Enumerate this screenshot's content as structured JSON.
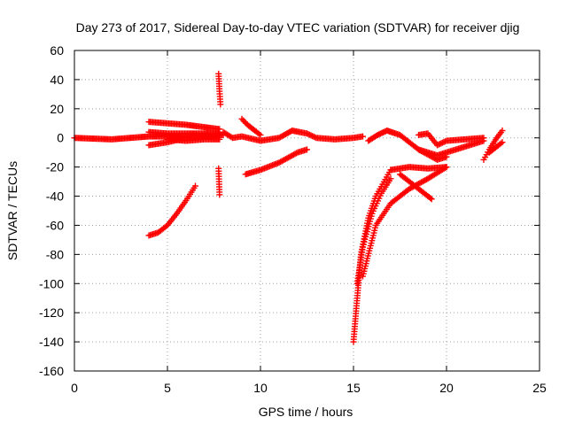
{
  "chart_data": {
    "type": "scatter",
    "title": "Day 273 of 2017, Sidereal Day-to-day VTEC variation (SDTVAR) for receiver djig",
    "xlabel": "GPS time / hours",
    "ylabel": "SDTVAR / TECUs",
    "xlim": [
      0,
      25
    ],
    "ylim": [
      -160,
      60
    ],
    "xticks": [
      0,
      5,
      10,
      15,
      20,
      25
    ],
    "yticks": [
      -160,
      -140,
      -120,
      -100,
      -80,
      -60,
      -40,
      -20,
      0,
      20,
      40,
      60
    ],
    "grid": true,
    "marker": "plus",
    "color": "#ff0000",
    "segments": [
      {
        "x": [
          0.0,
          2.0,
          4.0,
          6.0,
          8.0
        ],
        "y": [
          0,
          -1,
          1,
          1,
          2
        ]
      },
      {
        "x": [
          4.0,
          5.0,
          6.0,
          7.8
        ],
        "y": [
          11,
          10,
          9,
          6
        ]
      },
      {
        "x": [
          4.0,
          5.0,
          6.0,
          7.8
        ],
        "y": [
          4,
          3,
          3,
          3
        ]
      },
      {
        "x": [
          4.0,
          5.0,
          6.0,
          7.8
        ],
        "y": [
          -5,
          -3,
          0,
          2
        ]
      },
      {
        "x": [
          5.0,
          6.0,
          7.0,
          7.8
        ],
        "y": [
          -1,
          -2,
          -1,
          -1
        ]
      },
      {
        "x": [
          4.0,
          4.5,
          5.0,
          5.5,
          6.0,
          6.5
        ],
        "y": [
          -67,
          -65,
          -60,
          -52,
          -43,
          -33
        ]
      },
      {
        "x": [
          7.75,
          7.8,
          7.85
        ],
        "y": [
          44,
          32,
          23
        ]
      },
      {
        "x": [
          7.75,
          7.8
        ],
        "y": [
          -21,
          -39
        ]
      },
      {
        "x": [
          8.0,
          8.5,
          9.0,
          10.0,
          11.0,
          11.7,
          12.5,
          13.0,
          14.0,
          15.0,
          15.5
        ],
        "y": [
          4,
          0,
          1,
          -2,
          0,
          5,
          3,
          0,
          -1,
          0,
          1
        ]
      },
      {
        "x": [
          9.0,
          9.3,
          9.7,
          10.0
        ],
        "y": [
          13,
          9,
          5,
          2
        ]
      },
      {
        "x": [
          9.2,
          10.0,
          11.0,
          12.0,
          12.5
        ],
        "y": [
          -25,
          -22,
          -17,
          -10,
          -8
        ]
      },
      {
        "x": [
          15.0,
          15.2,
          15.4,
          15.8,
          16.2,
          17.0
        ],
        "y": [
          -140,
          -110,
          -80,
          -55,
          -40,
          -22
        ]
      },
      {
        "x": [
          15.2,
          15.5,
          16.0,
          16.5,
          17.0
        ],
        "y": [
          -100,
          -75,
          -52,
          -38,
          -28
        ]
      },
      {
        "x": [
          15.5,
          16.2,
          17.0,
          18.0,
          19.0,
          20.0
        ],
        "y": [
          -95,
          -60,
          -45,
          -35,
          -28,
          -20
        ]
      },
      {
        "x": [
          17.0,
          18.0,
          19.0,
          20.0
        ],
        "y": [
          -22,
          -20,
          -21,
          -20
        ]
      },
      {
        "x": [
          17.5,
          18.5,
          19.2
        ],
        "y": [
          -25,
          -35,
          -42
        ]
      },
      {
        "x": [
          15.8,
          16.3,
          16.8,
          17.5,
          18.0,
          18.5,
          19.0,
          19.5,
          20.0,
          21.0,
          22.0
        ],
        "y": [
          -2,
          2,
          5,
          2,
          -3,
          -8,
          -10,
          -12,
          -10,
          -6,
          -2
        ]
      },
      {
        "x": [
          18.5,
          19.0,
          19.5,
          20.0,
          21.0,
          22.0
        ],
        "y": [
          2,
          3,
          -5,
          -2,
          -1,
          0
        ]
      },
      {
        "x": [
          18.5,
          19.5,
          20.0
        ],
        "y": [
          -8,
          -15,
          -13
        ]
      },
      {
        "x": [
          22.0,
          22.3,
          22.7,
          23.0
        ],
        "y": [
          -15,
          -8,
          0,
          5
        ]
      },
      {
        "x": [
          22.3,
          22.7,
          23.0
        ],
        "y": [
          -10,
          -6,
          -3
        ]
      }
    ]
  }
}
